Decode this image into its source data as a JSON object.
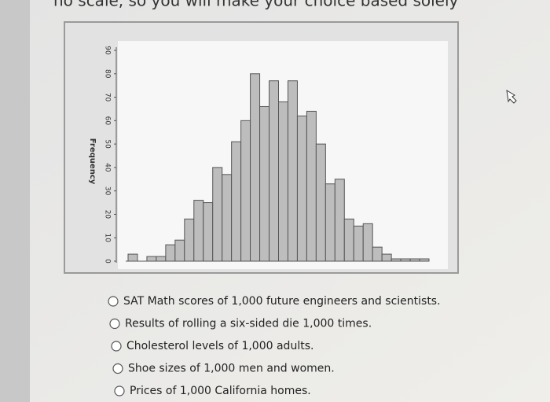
{
  "header": {
    "text": "no scale, so you will make your choice based solely"
  },
  "chart_data": {
    "type": "bar",
    "ylabel": "Frequency",
    "categories": [
      null,
      null,
      null,
      null,
      null,
      null,
      null,
      null,
      null,
      null,
      null,
      null,
      null,
      null,
      null,
      null,
      null,
      null,
      null,
      null,
      null,
      null,
      null,
      null,
      null,
      null,
      null,
      null,
      null,
      null,
      null,
      null
    ],
    "values": [
      3,
      0,
      2,
      2,
      7,
      9,
      18,
      26,
      25,
      40,
      37,
      51,
      60,
      80,
      66,
      77,
      68,
      77,
      62,
      64,
      50,
      33,
      35,
      18,
      15,
      16,
      6,
      3,
      1,
      1,
      1,
      1
    ],
    "color": "#bdbdbd",
    "ylim": [
      0,
      90
    ],
    "yticks": [
      0,
      10,
      20,
      30,
      40,
      50,
      60,
      70,
      80,
      90
    ]
  },
  "options": [
    "SAT Math scores of 1,000 future engineers and scientists.",
    "Results of rolling a six-sided die 1,000 times.",
    "Cholesterol levels of 1,000 adults.",
    "Shoe sizes of 1,000 men and women.",
    "Prices of 1,000 California homes."
  ]
}
